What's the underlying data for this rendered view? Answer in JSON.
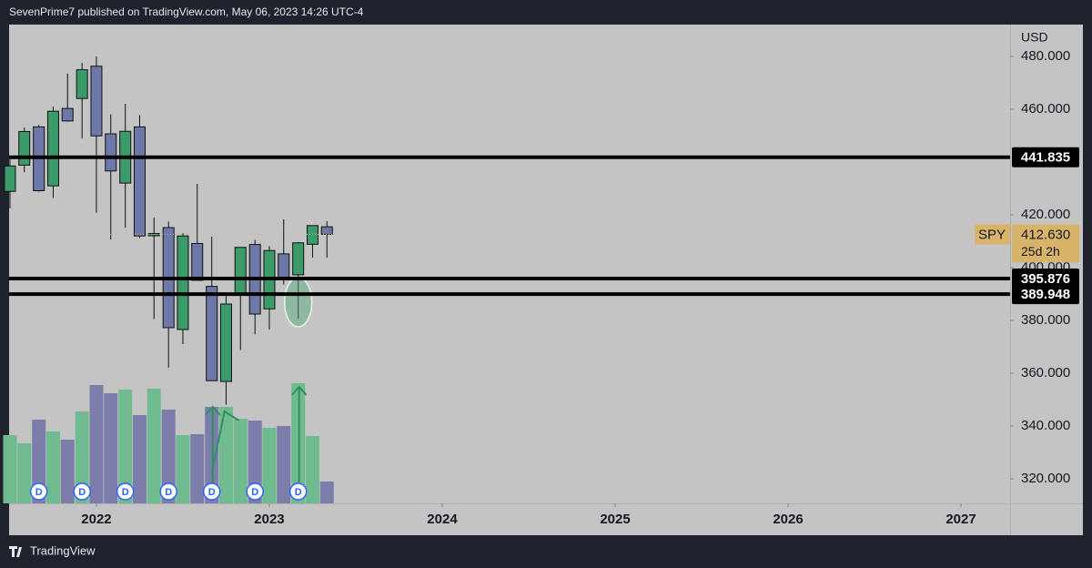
{
  "header": {
    "text": "SevenPrime7 published on TradingView.com, May 06, 2023 14:26 UTC-4"
  },
  "footer": {
    "brand": "TradingView"
  },
  "chart_data": {
    "type": "candlestick",
    "currency": "USD",
    "x": [
      2021.5,
      2021.583,
      2021.667,
      2021.75,
      2021.833,
      2021.917,
      2022.0,
      2022.083,
      2022.167,
      2022.25,
      2022.333,
      2022.417,
      2022.5,
      2022.583,
      2022.667,
      2022.75,
      2022.833,
      2022.917,
      2023.0,
      2023.083,
      2023.167,
      2023.25,
      2023.333
    ],
    "open": [
      428.87,
      438.83,
      453.32,
      430.98,
      460.3,
      464.07,
      476.3,
      450.68,
      432.03,
      453.31,
      412.07,
      415.17,
      376.56,
      409.15,
      392.89,
      356.88,
      390.14,
      408.77,
      384.37,
      405.21,
      397.27,
      408.85,
      415.47
    ],
    "high": [
      441.8,
      453.07,
      454.05,
      461.0,
      473.54,
      477.55,
      479.98,
      458.12,
      462.07,
      457.83,
      418.93,
      417.44,
      413.03,
      431.73,
      411.73,
      389.52,
      407.68,
      410.49,
      408.16,
      418.31,
      409.7,
      415.94,
      417.62
    ],
    "low": [
      422.45,
      436.1,
      428.78,
      426.36,
      455.29,
      448.92,
      420.76,
      410.64,
      415.12,
      411.21,
      380.54,
      362.17,
      371.04,
      395.04,
      357.04,
      348.11,
      368.79,
      374.77,
      376.5,
      393.64,
      380.65,
      403.78,
      403.74
    ],
    "close": [
      438.51,
      451.56,
      429.14,
      459.25,
      455.56,
      474.96,
      449.91,
      436.63,
      451.64,
      412.0,
      412.93,
      377.25,
      411.99,
      395.18,
      357.18,
      386.21,
      407.68,
      382.43,
      406.48,
      396.26,
      409.39,
      415.93,
      412.63
    ],
    "volume": [
      75,
      66,
      92,
      79,
      70,
      101,
      130,
      121,
      125,
      97,
      126,
      103,
      75,
      76,
      106,
      106,
      93,
      91,
      83,
      85,
      132,
      74,
      24
    ],
    "up_color": "#3a9a6a",
    "down_color": "#6b78a8",
    "volume_up_color": "#6fbb8f",
    "volume_down_color": "#7b7dab",
    "dividend_label": "D",
    "dividends": [
      2021.667,
      2021.917,
      2022.167,
      2022.417,
      2022.667,
      2022.917,
      2023.167
    ],
    "xlim": [
      2021.495,
      2027.284
    ],
    "xticks": [
      2022,
      2023,
      2024,
      2025,
      2026,
      2027
    ],
    "ylim": [
      310.7,
      492.07
    ],
    "yticks": [
      {
        "value": 320,
        "label": "320.000"
      },
      {
        "value": 340,
        "label": "340.000"
      },
      {
        "value": 360,
        "label": "360.000"
      },
      {
        "value": 380,
        "label": "380.000"
      },
      {
        "value": 400,
        "label": "400.000"
      },
      {
        "value": 420,
        "label": "420.000"
      },
      {
        "value": 460,
        "label": "460.000"
      },
      {
        "value": 480,
        "label": "480.000"
      }
    ],
    "levels": [
      441.835,
      395.876,
      389.948
    ],
    "symbol": "SPY",
    "last_price": {
      "value": 412.63,
      "label": "412.630"
    },
    "countdown": "25d 2h"
  }
}
